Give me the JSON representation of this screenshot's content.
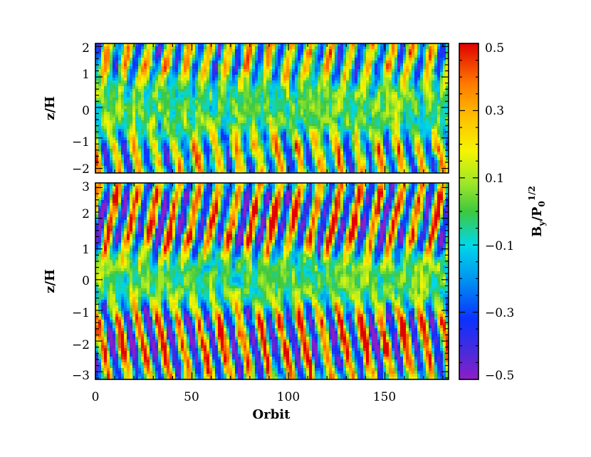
{
  "chart_data": [
    {
      "type": "heatmap",
      "panel": "top",
      "ylabel": "z/H",
      "x_ticks": [
        "0",
        "50",
        "100",
        "150"
      ],
      "y_ticks": [
        "−2",
        "−1",
        "0",
        "1",
        "2"
      ],
      "xlim": [
        0,
        183
      ],
      "ylim": [
        -2.15,
        2.1
      ],
      "z_variable": "By/P0^(1/2)",
      "pattern": "butterfly; weak, mostly-turbulent field near midplane, stronger alternating bands near |z| ≈ 1.5–2"
    },
    {
      "type": "heatmap",
      "panel": "bottom",
      "ylabel": "z/H",
      "xlabel": "Orbit",
      "x_ticks": [
        "0",
        "50",
        "100",
        "150"
      ],
      "y_ticks": [
        "−3",
        "−2",
        "−1",
        "0",
        "1",
        "2",
        "3"
      ],
      "xlim": [
        0,
        183
      ],
      "ylim": [
        -3.25,
        3.15
      ],
      "z_variable": "By/P0^(1/2)",
      "pattern": "butterfly; alternating-sign bands emerging at |z| ≈ 1 and migrating outward with period ≈ 10 orbits"
    }
  ],
  "colorbar": {
    "title_main": "B",
    "title_sub1": "y",
    "title_mid": "/P",
    "title_sub2": "0",
    "title_sup": "1/2",
    "ticks": [
      "0.5",
      "0.3",
      "0.1",
      "−0.1",
      "−0.3",
      "−0.5"
    ],
    "range": [
      -0.5,
      0.5
    ],
    "colormap": "rainbow (purple → blue → cyan → green → yellow → orange → red)"
  },
  "colors": {
    "deep_red": "#e00000",
    "orange": "#ff8c00",
    "yellow": "#f5f500",
    "green": "#3ec83e",
    "cyan": "#00d8e8",
    "blue": "#0a32ff",
    "purple": "#8c1ec8"
  }
}
